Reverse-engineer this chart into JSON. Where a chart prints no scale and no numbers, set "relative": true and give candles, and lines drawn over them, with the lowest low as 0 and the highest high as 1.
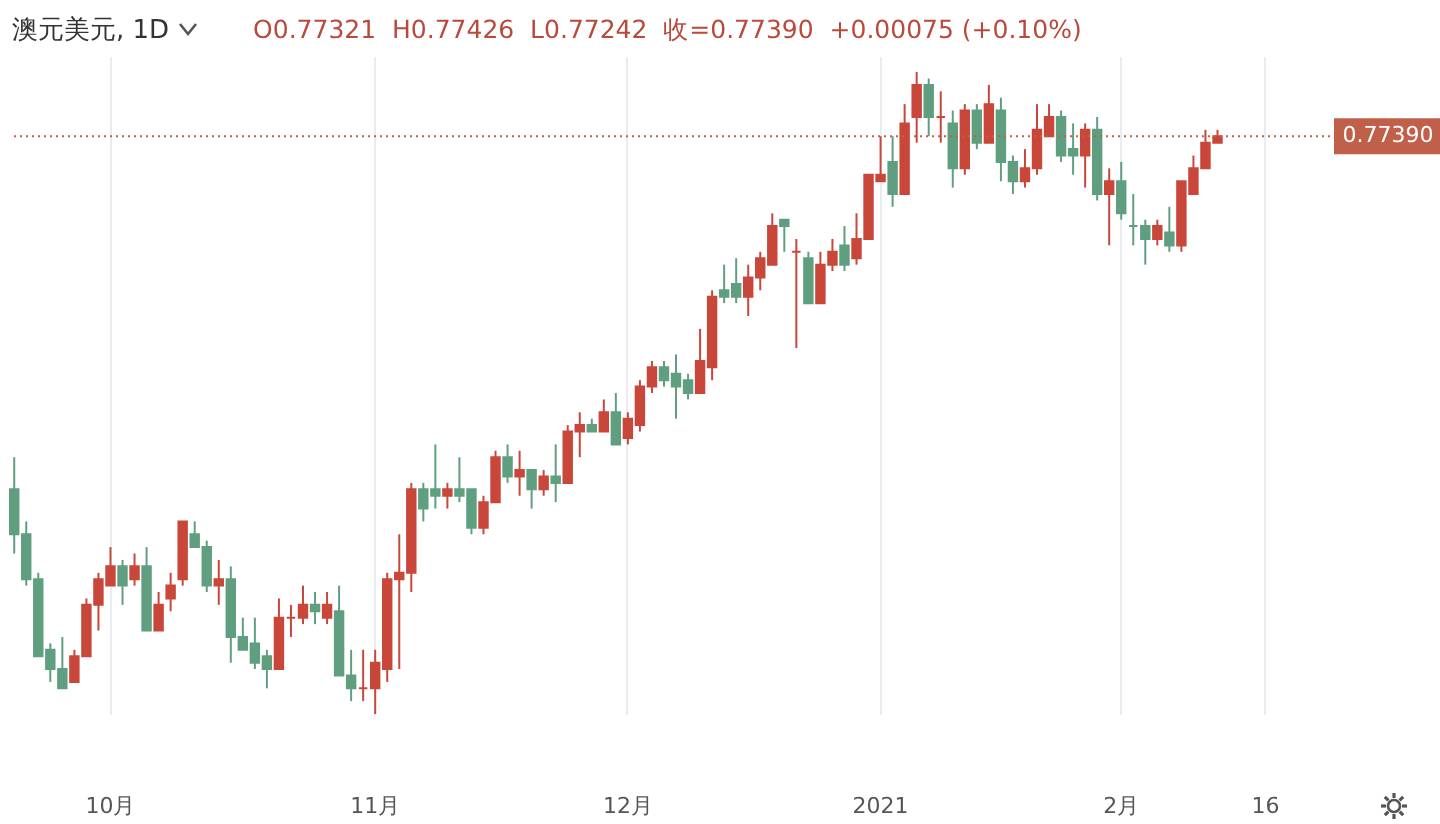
{
  "chart_data": {
    "type": "candlestick",
    "title": "澳元美元, 1D",
    "subtitle": "O0.77321  H0.77426  L0.77242  收=0.77390  +0.00075 (+0.10%)",
    "relative": true,
    "grid": "x",
    "categories": [
      null,
      null,
      null,
      null,
      null,
      null,
      null,
      null,
      "10月",
      null,
      null,
      null,
      null,
      null,
      null,
      null,
      null,
      null,
      null,
      null,
      null,
      null,
      null,
      null,
      null,
      null,
      null,
      null,
      null,
      null,
      "11月",
      null,
      null,
      null,
      null,
      null,
      null,
      null,
      null,
      null,
      null,
      null,
      null,
      null,
      null,
      null,
      null,
      null,
      null,
      null,
      null,
      "12月",
      null,
      null,
      null,
      null,
      null,
      null,
      null,
      null,
      null,
      null,
      null,
      null,
      null,
      null,
      null,
      null,
      null,
      null,
      null,
      null,
      "2021",
      null,
      null,
      null,
      null,
      null,
      null,
      null,
      null,
      null,
      null,
      null,
      null,
      null,
      null,
      null,
      null,
      null,
      null,
      null,
      "2月",
      null,
      null,
      null,
      null,
      null,
      null,
      null,
      null,
      null,
      null,
      null,
      "16",
      null,
      null,
      null,
      null,
      null
    ],
    "ohlc": [
      [
        0.35,
        0.4,
        0.25,
        0.28
      ],
      [
        0.28,
        0.3,
        0.2,
        0.21
      ],
      [
        0.21,
        0.22,
        0.09,
        0.09
      ],
      [
        0.1,
        0.11,
        0.05,
        0.07
      ],
      [
        0.07,
        0.12,
        0.04,
        0.04
      ],
      [
        0.05,
        0.1,
        0.05,
        0.09
      ],
      [
        0.09,
        0.18,
        0.09,
        0.17
      ],
      [
        0.17,
        0.22,
        0.13,
        0.21
      ],
      [
        0.2,
        0.26,
        0.2,
        0.23
      ],
      [
        0.23,
        0.24,
        0.17,
        0.2
      ],
      [
        0.21,
        0.25,
        0.2,
        0.23
      ],
      [
        0.23,
        0.26,
        0.13,
        0.13
      ],
      [
        0.13,
        0.19,
        0.13,
        0.17
      ],
      [
        0.18,
        0.22,
        0.16,
        0.2
      ],
      [
        0.21,
        0.3,
        0.2,
        0.3
      ],
      [
        0.28,
        0.3,
        0.26,
        0.26
      ],
      [
        0.26,
        0.27,
        0.19,
        0.2
      ],
      [
        0.2,
        0.24,
        0.17,
        0.21
      ],
      [
        0.21,
        0.23,
        0.08,
        0.12
      ],
      [
        0.12,
        0.15,
        0.1,
        0.1
      ],
      [
        0.11,
        0.15,
        0.07,
        0.08
      ],
      [
        0.09,
        0.1,
        0.04,
        0.07
      ],
      [
        0.07,
        0.18,
        0.07,
        0.15
      ],
      [
        0.15,
        0.17,
        0.12,
        0.15
      ],
      [
        0.15,
        0.2,
        0.14,
        0.17
      ],
      [
        0.17,
        0.19,
        0.14,
        0.16
      ],
      [
        0.15,
        0.19,
        0.14,
        0.17
      ],
      [
        0.16,
        0.2,
        0.06,
        0.06
      ],
      [
        0.06,
        0.1,
        0.02,
        0.04
      ],
      [
        0.04,
        0.1,
        0.02,
        0.04
      ],
      [
        0.04,
        0.1,
        0,
        0.08
      ],
      [
        0.07,
        0.22,
        0.05,
        0.21
      ],
      [
        0.21,
        0.28,
        0.07,
        0.22
      ],
      [
        0.22,
        0.36,
        0.19,
        0.35
      ],
      [
        0.35,
        0.36,
        0.3,
        0.32
      ],
      [
        0.35,
        0.42,
        0.32,
        0.34
      ],
      [
        0.34,
        0.36,
        0.32,
        0.35
      ],
      [
        0.35,
        0.4,
        0.33,
        0.34
      ],
      [
        0.35,
        0.35,
        0.28,
        0.29
      ],
      [
        0.29,
        0.34,
        0.28,
        0.33
      ],
      [
        0.33,
        0.41,
        0.33,
        0.4
      ],
      [
        0.4,
        0.42,
        0.36,
        0.37
      ],
      [
        0.37,
        0.41,
        0.34,
        0.38
      ],
      [
        0.38,
        0.38,
        0.32,
        0.35
      ],
      [
        0.35,
        0.38,
        0.34,
        0.37
      ],
      [
        0.37,
        0.42,
        0.33,
        0.36
      ],
      [
        0.36,
        0.45,
        0.36,
        0.44
      ],
      [
        0.44,
        0.47,
        0.4,
        0.45
      ],
      [
        0.45,
        0.46,
        0.44,
        0.44
      ],
      [
        0.44,
        0.49,
        0.44,
        0.47
      ],
      [
        0.47,
        0.5,
        0.42,
        0.42
      ],
      [
        0.43,
        0.47,
        0.42,
        0.46
      ],
      [
        0.45,
        0.52,
        0.44,
        0.51
      ],
      [
        0.51,
        0.55,
        0.5,
        0.54
      ],
      [
        0.54,
        0.55,
        0.51,
        0.52
      ],
      [
        0.53,
        0.56,
        0.46,
        0.51
      ],
      [
        0.52,
        0.53,
        0.49,
        0.5
      ],
      [
        0.5,
        0.6,
        0.5,
        0.55
      ],
      [
        0.54,
        0.66,
        0.52,
        0.65
      ],
      [
        0.66,
        0.7,
        0.64,
        0.65
      ],
      [
        0.67,
        0.71,
        0.64,
        0.65
      ],
      [
        0.65,
        0.7,
        0.62,
        0.68
      ],
      [
        0.68,
        0.72,
        0.66,
        0.71
      ],
      [
        0.7,
        0.78,
        0.7,
        0.76
      ],
      [
        0.77,
        0.77,
        0.72,
        0.76
      ],
      [
        0.72,
        0.74,
        0.57,
        0.72
      ],
      [
        0.71,
        0.72,
        0.64,
        0.64
      ],
      [
        0.64,
        0.72,
        0.64,
        0.7
      ],
      [
        0.7,
        0.74,
        0.69,
        0.72
      ],
      [
        0.73,
        0.76,
        0.69,
        0.7
      ],
      [
        0.71,
        0.78,
        0.7,
        0.74
      ],
      [
        0.74,
        0.84,
        0.74,
        0.84
      ],
      [
        0.83,
        0.9,
        0.83,
        0.84
      ],
      [
        0.86,
        0.9,
        0.79,
        0.81
      ],
      [
        0.81,
        0.95,
        0.81,
        0.92
      ],
      [
        0.93,
        1,
        0.89,
        0.98
      ],
      [
        0.98,
        0.99,
        0.9,
        0.93
      ],
      [
        0.93,
        0.97,
        0.89,
        0.93
      ],
      [
        0.92,
        0.94,
        0.82,
        0.85
      ],
      [
        0.85,
        0.95,
        0.84,
        0.94
      ],
      [
        0.94,
        0.95,
        0.88,
        0.89
      ],
      [
        0.89,
        0.98,
        0.89,
        0.95
      ],
      [
        0.94,
        0.96,
        0.83,
        0.86
      ],
      [
        0.86,
        0.87,
        0.81,
        0.83
      ],
      [
        0.83,
        0.88,
        0.82,
        0.85
      ],
      [
        0.85,
        0.95,
        0.84,
        0.91
      ],
      [
        0.9,
        0.95,
        0.9,
        0.93
      ],
      [
        0.93,
        0.94,
        0.86,
        0.87
      ],
      [
        0.88,
        0.92,
        0.84,
        0.87
      ],
      [
        0.87,
        0.92,
        0.82,
        0.91
      ],
      [
        0.91,
        0.93,
        0.8,
        0.81
      ],
      [
        0.81,
        0.85,
        0.73,
        0.83
      ],
      [
        0.83,
        0.86,
        0.77,
        0.78
      ],
      [
        0.76,
        0.81,
        0.73,
        0.76
      ],
      [
        0.76,
        0.77,
        0.7,
        0.74
      ],
      [
        0.74,
        0.77,
        0.73,
        0.76
      ],
      [
        0.75,
        0.79,
        0.72,
        0.73
      ],
      [
        0.73,
        0.83,
        0.72,
        0.83
      ],
      [
        0.81,
        0.87,
        0.81,
        0.85
      ],
      [
        0.85,
        0.91,
        0.85,
        0.89
      ],
      [
        0.89,
        0.91,
        0.89,
        0.9
      ],
      null,
      null,
      null,
      null,
      null,
      null,
      null,
      null,
      null
    ],
    "colors": [
      "#5f9f80",
      "#5f9f80",
      "#5f9f80",
      "#5f9f80",
      "#5f9f80",
      "#c9473a",
      "#c9473a",
      "#c9473a",
      "#c9473a",
      "#5f9f80",
      "#c9473a",
      "#5f9f80",
      "#c9473a",
      "#c9473a",
      "#c9473a",
      "#5f9f80",
      "#5f9f80",
      "#c9473a",
      "#5f9f80",
      "#5f9f80",
      "#5f9f80",
      "#5f9f80",
      "#c9473a",
      "#c9473a",
      "#c9473a",
      "#5f9f80",
      "#c9473a",
      "#5f9f80",
      "#5f9f80",
      "#c9473a",
      "#c9473a",
      "#c9473a",
      "#c9473a",
      "#c9473a",
      "#5f9f80",
      "#5f9f80",
      "#c9473a",
      "#5f9f80",
      "#5f9f80",
      "#c9473a",
      "#c9473a",
      "#5f9f80",
      "#c9473a",
      "#5f9f80",
      "#c9473a",
      "#5f9f80",
      "#c9473a",
      "#c9473a",
      "#5f9f80",
      "#c9473a",
      "#5f9f80",
      "#c9473a",
      "#c9473a",
      "#c9473a",
      "#5f9f80",
      "#5f9f80",
      "#5f9f80",
      "#c9473a",
      "#c9473a",
      "#5f9f80",
      "#5f9f80",
      "#c9473a",
      "#c9473a",
      "#c9473a",
      "#5f9f80",
      "#c9473a",
      "#5f9f80",
      "#c9473a",
      "#c9473a",
      "#5f9f80",
      "#c9473a",
      "#c9473a",
      "#c9473a",
      "#5f9f80",
      "#c9473a",
      "#c9473a",
      "#5f9f80",
      "#c9473a",
      "#5f9f80",
      "#c9473a",
      "#5f9f80",
      "#c9473a",
      "#5f9f80",
      "#5f9f80",
      "#c9473a",
      "#c9473a",
      "#c9473a",
      "#5f9f80",
      "#5f9f80",
      "#c9473a",
      "#5f9f80",
      "#c9473a",
      "#5f9f80",
      "#5f9f80",
      "#5f9f80",
      "#c9473a",
      "#5f9f80",
      "#c9473a",
      "#c9473a",
      "#c9473a",
      "#c9473a",
      null,
      null,
      null,
      null,
      null,
      null,
      null,
      null,
      null
    ],
    "annotations": [
      "0.77390"
    ],
    "ref_lines": [
      {
        "axis": "y",
        "value": 0.9,
        "color": "#c0604a",
        "line_style": "dotted"
      }
    ]
  }
}
